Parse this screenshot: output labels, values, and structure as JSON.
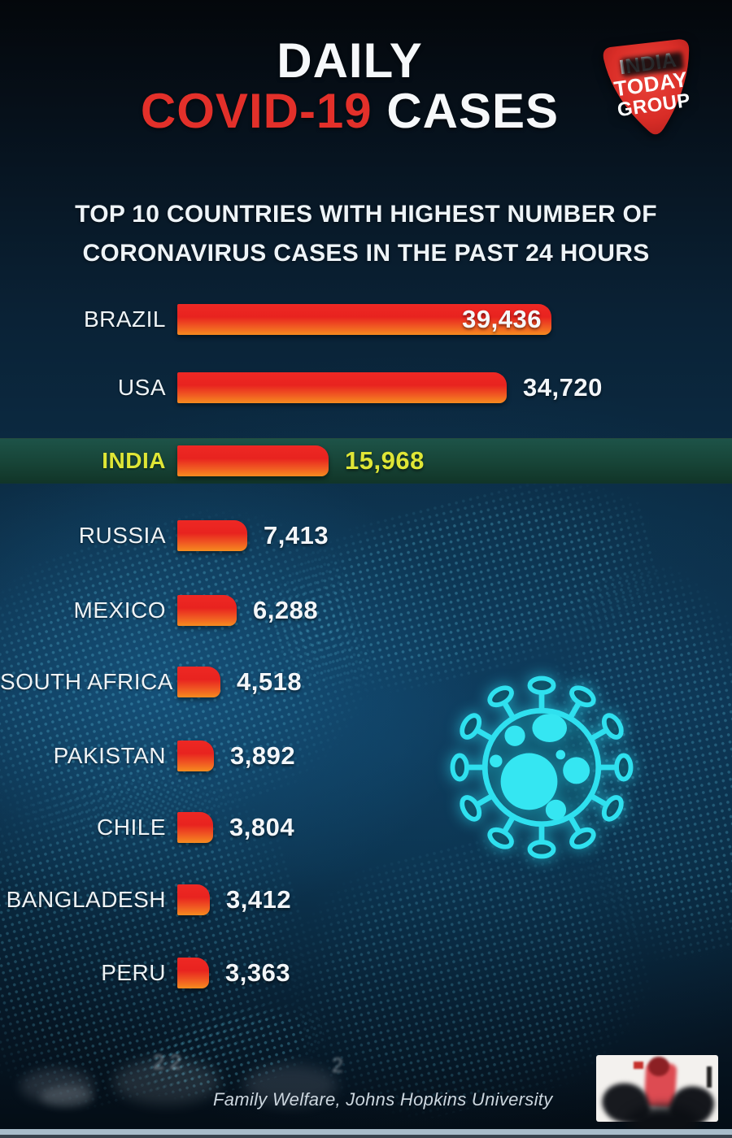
{
  "header": {
    "title_line1": "DAILY",
    "title_line2_accent": "COVID-19",
    "title_line2_rest": " CASES",
    "accent_color": "#e3302a"
  },
  "logo": {
    "line1": "INDIA",
    "line2": "TODAY",
    "line3": "GROUP",
    "bg_color": "#d92d27"
  },
  "subtitle": {
    "line1": "TOP 10 COUNTRIES WITH HIGHEST NUMBER OF",
    "line2": "CORONAVIRUS CASES IN THE PAST 24 HOURS"
  },
  "chart_data": {
    "type": "bar",
    "orientation": "horizontal",
    "title": "Top 10 countries with highest number of coronavirus cases in the past 24 hours",
    "categories": [
      "BRAZIL",
      "USA",
      "INDIA",
      "RUSSIA",
      "MEXICO",
      "SOUTH AFRICA",
      "PAKISTAN",
      "CHILE",
      "BANGLADESH",
      "PERU"
    ],
    "values": [
      39436,
      34720,
      15968,
      7413,
      6288,
      4518,
      3892,
      3804,
      3412,
      3363
    ],
    "value_labels": [
      "39,436",
      "34,720",
      "15,968",
      "7,413",
      "6,288",
      "4,518",
      "3,892",
      "3,804",
      "3,412",
      "3,363"
    ],
    "xlim": [
      0,
      39436
    ],
    "highlighted_category": "INDIA",
    "value_inside_bar_categories": [
      "BRAZIL"
    ],
    "bar_gradient_top": "#ee2824",
    "bar_gradient_bottom": "#f68b1f",
    "highlight_band_color": "#174437",
    "highlight_text_color": "#dfe636"
  },
  "footer": {
    "source_text": "Family Welfare, Johns Hopkins University",
    "faint_marks": [
      "2 2",
      "2"
    ]
  },
  "decor": {
    "virus_icon_color": "#2fe0ef",
    "map_dot_color": "#5fc8e4"
  }
}
